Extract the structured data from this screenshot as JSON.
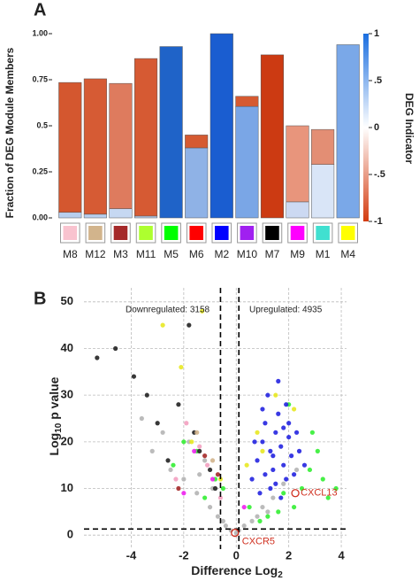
{
  "chart_data": [
    {
      "type": "stacked_bar",
      "panel": "A",
      "y_label": "Fraction of DEG Module Members",
      "categories": [
        "M8",
        "M12",
        "M3",
        "M11",
        "M5",
        "M6",
        "M2",
        "M10",
        "M7",
        "M9",
        "M1",
        "M4"
      ],
      "module_colors": [
        "#f9c3cf",
        "#d2b48c",
        "#a52a2a",
        "#adff2f",
        "#00ff00",
        "#ff0000",
        "#0000ff",
        "#a020f0",
        "#000000",
        "#ff00ff",
        "#40e0d0",
        "#ffff00"
      ],
      "series": [
        {
          "values": [
            0.03,
            0.02,
            0.05,
            0.01,
            0.93,
            0.38,
            1.0,
            0.605,
            0,
            0.087,
            0.29,
            0.94
          ],
          "colors": [
            "#b8cfee",
            "#b8cfee",
            "#c6d8f2",
            "#b8cfee",
            "#1f63c8",
            "#8fb2e6",
            "#1a5dd0",
            "#7aa6e6",
            "#cc3a12",
            "#ccd9f2",
            "#d9e5f7",
            "#7aa8e8"
          ]
        },
        {
          "values": [
            0.705,
            0.735,
            0.68,
            0.855,
            0,
            0.07,
            0,
            0.055,
            0.885,
            0.413,
            0.19,
            0
          ],
          "colors": [
            "#d4572f",
            "#d65b34",
            "#de7b5e",
            "#d65a33",
            "#1f63c8",
            "#d55a31",
            "#1a5dd0",
            "#d55a31",
            "#cc3a12",
            "#e8957c",
            "#e38e74",
            "#7aa8e8"
          ]
        }
      ],
      "ylim": [
        0,
        1
      ],
      "yticks": [
        {
          "value": 0,
          "label": "0.00"
        },
        0.25,
        0.5,
        0.75,
        {
          "value": 1,
          "label": "1.00"
        }
      ],
      "colorbar": {
        "title": "DEG Indicator",
        "clim": [
          -1,
          1
        ],
        "colors": [
          "#d43c10",
          "#ffffff",
          "#1a6ee0"
        ],
        "ticks": [
          1,
          {
            "value": 0.5,
            "label": ".5"
          },
          0,
          {
            "value": -0.5,
            "label": "-.5"
          },
          -1
        ]
      }
    },
    {
      "type": "scatter",
      "panel": "B",
      "x_label": "Difference Log",
      "x_label_sub": "2",
      "y_label": "Log",
      "y_label_sub": "10",
      "y_label_rest": " p value",
      "xlim": [
        -5.8,
        4.2
      ],
      "ylim": [
        -3,
        53
      ],
      "xticks": [
        -4,
        -2,
        0,
        2,
        4
      ],
      "yticks": [
        0,
        10,
        20,
        30,
        40,
        50
      ],
      "grid": true,
      "thresholds": {
        "x": [
          -0.6,
          0.1
        ],
        "y": 1.3
      },
      "annotations": [
        "Downregulated: 3158",
        "Upregulated: 4935"
      ],
      "highlights": [
        {
          "label": "CXCL13",
          "x": 2.25,
          "y": 9
        },
        {
          "label": "CXCR5",
          "x": -0.05,
          "y": 0.5
        }
      ],
      "series": [
        {
          "color": "#b4b4b4",
          "x": [
            -3.2,
            -2.5,
            -2.0,
            -1.5,
            -1.0,
            -0.7,
            -0.4,
            -0.2,
            0.1,
            0.3,
            0.6,
            1.0,
            1.4,
            1.8,
            2.3,
            -1.8,
            -1.2,
            -0.9,
            -2.8,
            -3.6,
            0.8,
            1.2,
            -0.5,
            0.0,
            -1.4
          ],
          "y": [
            18,
            14,
            12,
            9,
            6,
            4,
            2,
            1,
            1,
            2,
            3,
            6,
            8,
            11,
            14,
            20,
            16,
            10,
            22,
            25,
            4,
            5,
            3,
            0.5,
            13
          ]
        },
        {
          "color": "#33ee33",
          "x": [
            0.5,
            1.2,
            2.5,
            2.8,
            3.1,
            3.5,
            2.2,
            1.8,
            -0.8,
            -1.5,
            -2.0,
            -1.2,
            3.8,
            0.9,
            2.9,
            1.6,
            -0.5,
            -2.4,
            3.3,
            2.0
          ],
          "y": [
            6,
            4,
            10,
            14,
            18,
            8,
            6,
            9,
            12,
            18,
            20,
            8,
            10,
            3,
            22,
            5,
            10,
            15,
            12,
            28
          ]
        },
        {
          "color": "#2323e0",
          "x": [
            0.6,
            0.8,
            1.0,
            1.1,
            1.3,
            1.4,
            1.5,
            1.6,
            1.7,
            1.8,
            1.9,
            2.0,
            2.1,
            2.2,
            0.9,
            1.2,
            1.5,
            1.8,
            2.4,
            2.6,
            1.0,
            1.3,
            1.6,
            2.0,
            0.7,
            1.1,
            1.4,
            1.7,
            2.3,
            1.9
          ],
          "y": [
            12,
            16,
            20,
            24,
            18,
            14,
            22,
            26,
            19,
            15,
            28,
            21,
            17,
            13,
            9,
            30,
            11,
            23,
            18,
            15,
            27,
            10,
            33,
            24,
            20,
            13,
            17,
            8,
            22,
            12
          ]
        },
        {
          "color": "#222222",
          "x": [
            -5.3,
            -4.6,
            -3.9,
            -3.0,
            -2.2,
            -1.8,
            -1.4,
            -2.6,
            -1.0,
            -0.8,
            -3.4,
            -1.6
          ],
          "y": [
            38,
            40,
            34,
            24,
            28,
            45,
            18,
            16,
            14,
            10,
            30,
            22
          ]
        },
        {
          "color": "#e8e822",
          "x": [
            -1.3,
            -2.8,
            -2.1,
            0.4,
            0.8,
            1.5,
            2.2,
            -0.6,
            -1.7,
            1.0
          ],
          "y": [
            48,
            45,
            36,
            15,
            22,
            30,
            27,
            12,
            20,
            18
          ]
        },
        {
          "color": "#f3a0c0",
          "x": [
            -1.9,
            -1.1,
            -0.6,
            -2.3,
            -1.4
          ],
          "y": [
            24,
            15,
            8,
            12,
            19
          ]
        },
        {
          "color": "#ee22ee",
          "x": [
            -0.9,
            -1.6,
            0.3,
            -2.0
          ],
          "y": [
            12,
            18,
            6,
            9
          ]
        },
        {
          "color": "#a52a2a",
          "x": [
            -1.2,
            -2.2,
            -0.7
          ],
          "y": [
            17,
            10,
            13
          ]
        },
        {
          "color": "#d2b48c",
          "x": [
            -1.5,
            -0.9
          ],
          "y": [
            22,
            16
          ]
        }
      ]
    }
  ]
}
